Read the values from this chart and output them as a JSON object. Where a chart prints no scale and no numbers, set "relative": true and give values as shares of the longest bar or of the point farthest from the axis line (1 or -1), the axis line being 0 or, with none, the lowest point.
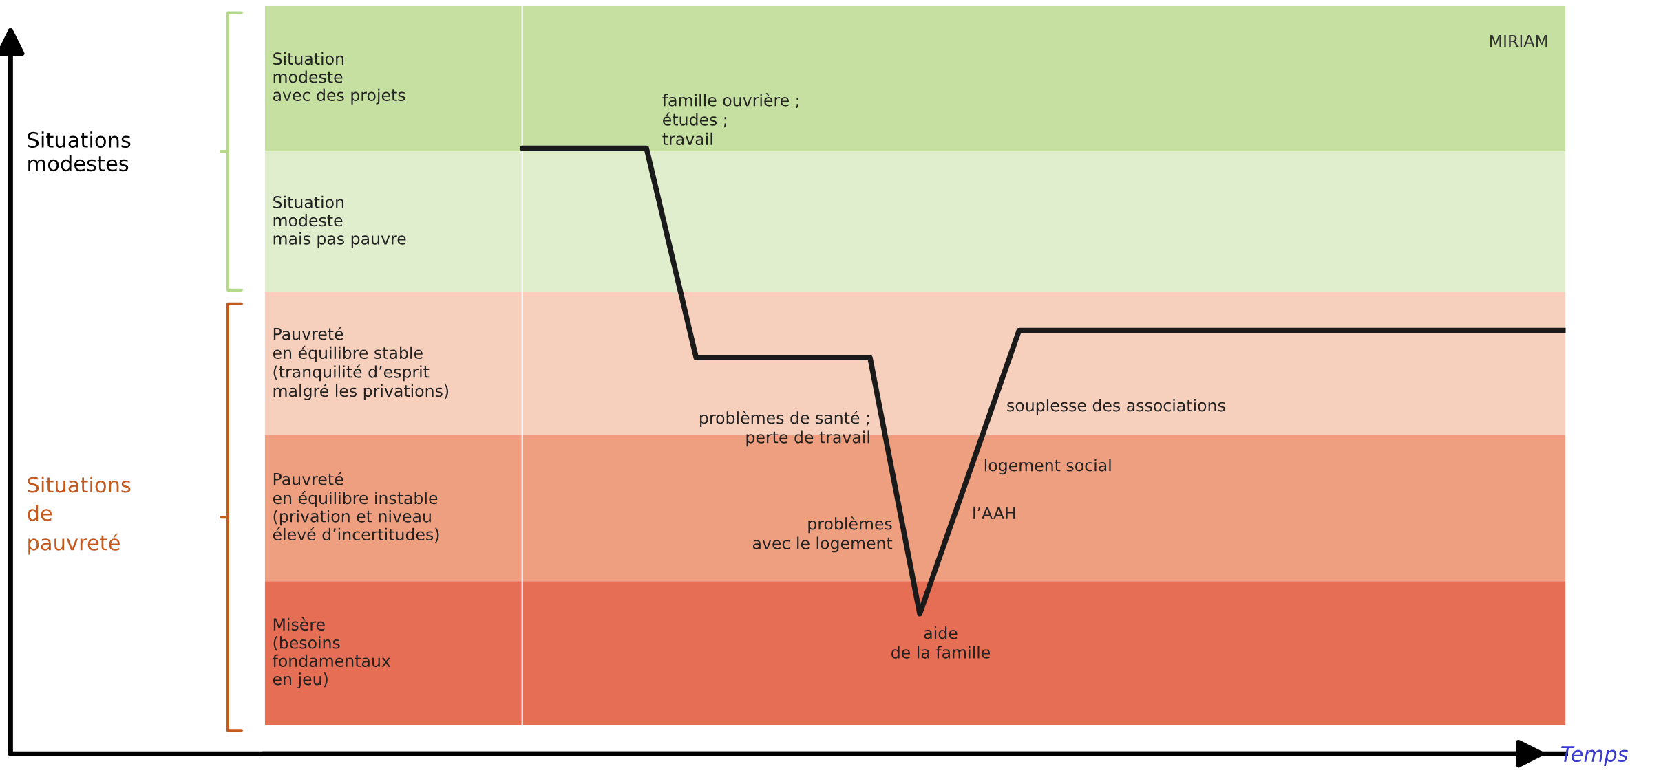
{
  "chart_data": {
    "type": "line",
    "relative": true,
    "xlabel": "Temps",
    "categories": [
      null,
      null,
      null,
      null,
      null,
      null,
      null,
      null,
      null,
      null,
      null,
      null,
      null,
      null,
      null,
      null,
      null,
      null,
      null,
      null,
      null,
      null,
      null,
      null,
      null,
      null,
      null,
      null,
      null,
      null,
      null,
      null,
      null,
      null,
      null,
      null,
      null,
      null,
      null,
      null,
      null,
      null,
      null
    ],
    "series": [
      {
        "color": "#1a1a1a",
        "values": [
          1,
          1,
          1,
          1,
          1,
          1,
          0.827,
          0.654,
          0.654,
          0.654,
          0.654,
          0.654,
          0.654,
          0.654,
          0.654,
          0.443,
          0.231,
          0.348,
          0.465,
          0.582,
          0.699,
          0.699,
          0.699,
          0.699,
          0.699,
          0.699,
          0.699,
          0.699,
          0.699,
          0.699,
          0.699,
          0.699,
          0.699,
          0.699,
          0.699,
          0.699,
          0.699,
          0.699,
          0.699,
          0.699,
          0.699,
          0.699,
          0.699
        ]
      }
    ],
    "bands": [
      {
        "axis": "y",
        "from": 0.995,
        "to": 1.236,
        "label": "Situation\nmodeste\navec des projets",
        "color": "#c5e0a0"
      },
      {
        "axis": "y",
        "from": 0.762,
        "to": 0.995,
        "label": "Situation\nmodeste\nmais pas pauvre",
        "color": "#e0eece"
      },
      {
        "axis": "y",
        "from": 0.526,
        "to": 0.762,
        "label": "Pauvreté\nen équilibre stable\n(tranquilité d’esprit\nmalgré les privations)",
        "color": "#f6cfbd"
      },
      {
        "axis": "y",
        "from": 0.285,
        "to": 0.526,
        "label": "Pauvreté\nen équilibre instable\n(privation et niveau\nélevé d’incertitudes)",
        "color": "#ee9f80"
      },
      {
        "axis": "y",
        "from": 0.047,
        "to": 0.285,
        "label": "Misère\n(besoins\nfondamentaux\nen jeu)",
        "color": "#e56e55"
      }
    ],
    "annotations": [
      "famille ouvrière ;\nétudes ;\ntravail",
      "problèmes de santé ;\nperte de travail",
      "problèmes\navec le logement",
      "aide\nde la famille",
      "souplesse des associations",
      "logement social",
      "l’AAH",
      "MIRIAM",
      "Situations\nmodestes",
      "Situations\nde\npauvreté"
    ]
  }
}
